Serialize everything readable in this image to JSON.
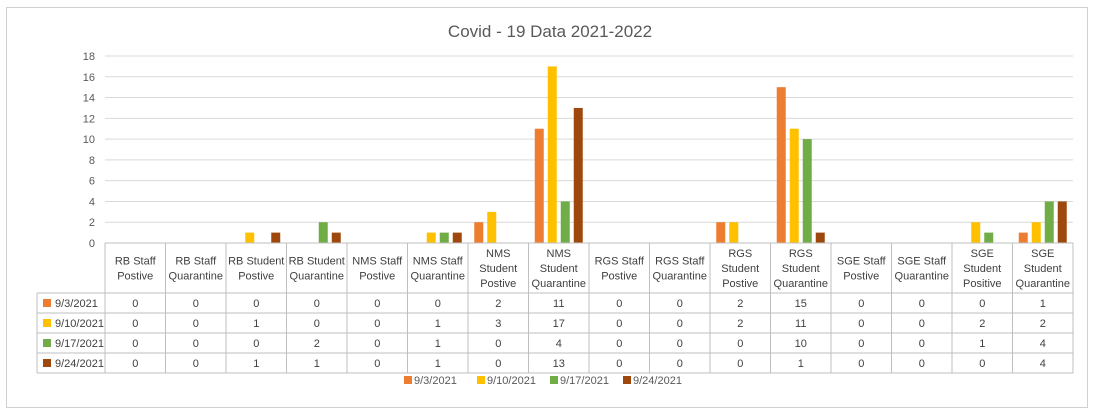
{
  "chart_data": {
    "type": "bar",
    "title": "Covid - 19 Data 2021-2022",
    "ylim": [
      0,
      18
    ],
    "yticks": [
      0,
      2,
      4,
      6,
      8,
      10,
      12,
      14,
      16,
      18
    ],
    "grid": true,
    "legend_placement": "bottom",
    "categories": [
      [
        "RB Staff",
        "Postive"
      ],
      [
        "RB Staff",
        "Quarantine"
      ],
      [
        "RB Student",
        "Postive"
      ],
      [
        "RB Student",
        "Quarantine"
      ],
      [
        "NMS Staff",
        "Postive"
      ],
      [
        "NMS Staff",
        "Quarantine"
      ],
      [
        "NMS",
        "Student",
        "Postive"
      ],
      [
        "NMS",
        "Student",
        "Quarantine"
      ],
      [
        "RGS Staff",
        "Postive"
      ],
      [
        "RGS Staff",
        "Quarantine"
      ],
      [
        "RGS",
        "Student",
        "Postive"
      ],
      [
        "RGS",
        "Student",
        "Quarantine"
      ],
      [
        "SGE Staff",
        "Postive"
      ],
      [
        "SGE Staff",
        "Quarantine"
      ],
      [
        "SGE",
        "Student",
        "Positive"
      ],
      [
        "SGE",
        "Student",
        "Quarantine"
      ]
    ],
    "series": [
      {
        "name": "9/3/2021",
        "color": "#ed7d31",
        "values": [
          0,
          0,
          0,
          0,
          0,
          0,
          2,
          11,
          0,
          0,
          2,
          15,
          0,
          0,
          0,
          1
        ]
      },
      {
        "name": "9/10/2021",
        "color": "#ffc000",
        "values": [
          0,
          0,
          1,
          0,
          0,
          1,
          3,
          17,
          0,
          0,
          2,
          11,
          0,
          0,
          2,
          2
        ]
      },
      {
        "name": "9/17/2021",
        "color": "#70ad47",
        "values": [
          0,
          0,
          0,
          2,
          0,
          1,
          0,
          4,
          0,
          0,
          0,
          10,
          0,
          0,
          1,
          4
        ]
      },
      {
        "name": "9/24/2021",
        "color": "#9e480e",
        "values": [
          0,
          0,
          1,
          1,
          0,
          1,
          0,
          13,
          0,
          0,
          0,
          1,
          0,
          0,
          0,
          4
        ]
      }
    ]
  }
}
